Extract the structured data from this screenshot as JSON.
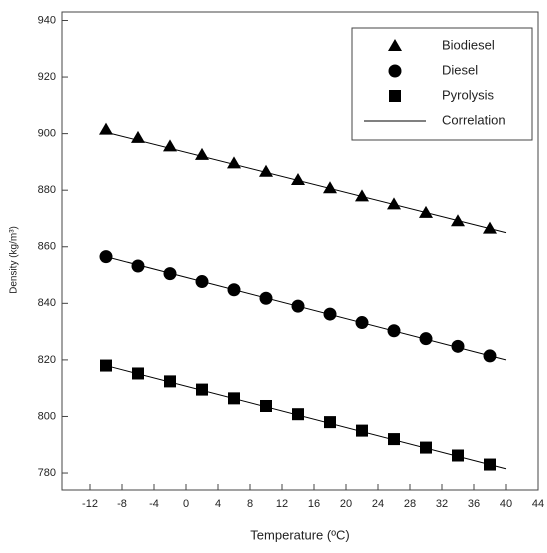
{
  "chart_data": {
    "type": "scatter",
    "xlabel": "Temperature (ºC)",
    "ylabel": "Density (kg/m³)",
    "x": [
      -10,
      -6,
      -2,
      2,
      6,
      10,
      14,
      18,
      22,
      26,
      30,
      34,
      38
    ],
    "series": [
      {
        "name": "Biodiesel",
        "marker": "triangle",
        "color": "#000000",
        "values": [
          901.4,
          898.5,
          895.5,
          892.5,
          889.5,
          886.5,
          883.6,
          880.7,
          877.8,
          875,
          872,
          869,
          866.4
        ]
      },
      {
        "name": "Diesel",
        "marker": "circle",
        "color": "#000000",
        "values": [
          856.5,
          853.2,
          850.5,
          847.7,
          844.8,
          841.8,
          839,
          836.2,
          833.2,
          830.3,
          827.5,
          824.8,
          821.4
        ]
      },
      {
        "name": "Pyrolysis",
        "marker": "square",
        "color": "#000000",
        "values": [
          818,
          815.2,
          812.4,
          809.5,
          806.4,
          803.7,
          800.8,
          798,
          795,
          792,
          789,
          786.2,
          783
        ]
      },
      {
        "name": "Correlation",
        "marker": "line",
        "color": "#000000",
        "x": [
          -10,
          40
        ],
        "lines": [
          [
            900.5,
            865
          ],
          [
            856.5,
            820
          ],
          [
            818,
            781.5
          ]
        ]
      }
    ],
    "xlim": [
      -15.5,
      44
    ],
    "ylim": [
      774,
      943
    ],
    "xticks": [
      -12,
      -8,
      -4,
      0,
      4,
      8,
      12,
      16,
      20,
      24,
      28,
      32,
      36,
      40,
      44
    ],
    "yticks": [
      780,
      800,
      820,
      840,
      860,
      880,
      900,
      920,
      940
    ],
    "legend": "upper right",
    "grid": false
  }
}
